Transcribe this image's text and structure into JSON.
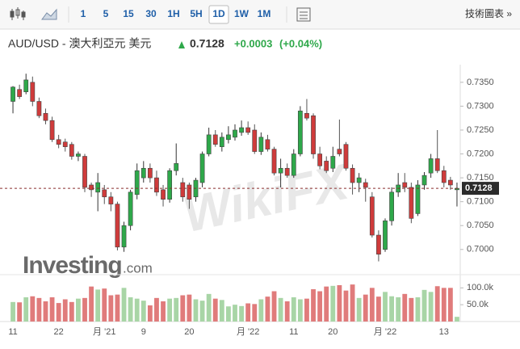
{
  "toolbar": {
    "intervals": [
      "1",
      "5",
      "15",
      "30",
      "1H",
      "5H",
      "1D",
      "1W",
      "1M"
    ],
    "active": 6,
    "technical": "技術圖表 »"
  },
  "header": {
    "pair": "AUD/USD - 澳大利亞元 美元",
    "change": "+0.0003",
    "change_pct": "(+0.04%)"
  },
  "logo": {
    "name": "Investing",
    "suffix": ".com"
  },
  "watermark": "WikiFX",
  "chart_data": {
    "type": "candlestick",
    "categories": [
      "11",
      null,
      null,
      null,
      null,
      null,
      null,
      "22",
      null,
      null,
      null,
      null,
      null,
      null,
      "月 '21",
      null,
      null,
      null,
      null,
      null,
      "9",
      null,
      null,
      null,
      null,
      null,
      null,
      "20",
      null,
      null,
      null,
      null,
      null,
      null,
      null,
      null,
      "月 '22",
      null,
      null,
      null,
      null,
      null,
      null,
      "11",
      null,
      null,
      null,
      null,
      null,
      "20",
      null,
      null,
      null,
      null,
      null,
      null,
      null,
      "月 '22",
      null,
      null,
      null,
      null,
      null,
      null,
      null,
      null,
      "13",
      null,
      null
    ],
    "open": [
      0.731,
      0.7335,
      0.733,
      0.735,
      0.731,
      0.7285,
      0.727,
      0.723,
      0.7225,
      0.722,
      0.7195,
      0.7195,
      0.7135,
      0.712,
      0.7125,
      0.711,
      0.7095,
      0.7005,
      0.705,
      0.7115,
      0.715,
      0.717,
      0.715,
      0.7125,
      0.7105,
      0.7165,
      0.714,
      0.7135,
      0.711,
      0.714,
      0.72,
      0.724,
      0.7215,
      0.723,
      0.7235,
      0.7245,
      0.7255,
      0.725,
      0.7205,
      0.723,
      0.721,
      0.716,
      0.717,
      0.7155,
      0.72,
      0.7285,
      0.728,
      0.72,
      0.7185,
      0.717,
      0.721,
      0.722,
      0.717,
      0.714,
      0.714,
      0.711,
      0.703,
      0.7,
      0.706,
      0.712,
      0.714,
      0.713,
      0.7075,
      0.7135,
      0.716,
      0.719,
      0.7165,
      0.7145,
      0.7125
    ],
    "high": [
      0.7342,
      0.7345,
      0.7368,
      0.7362,
      0.7318,
      0.7295,
      0.7278,
      0.724,
      0.7232,
      0.7225,
      0.7205,
      0.72,
      0.714,
      0.716,
      0.7135,
      0.712,
      0.71,
      0.7058,
      0.7125,
      0.718,
      0.7185,
      0.718,
      0.7165,
      0.7135,
      0.717,
      0.7222,
      0.715,
      0.714,
      0.715,
      0.7205,
      0.7255,
      0.725,
      0.7245,
      0.7258,
      0.7262,
      0.727,
      0.7268,
      0.7262,
      0.7245,
      0.724,
      0.7215,
      0.719,
      0.718,
      0.721,
      0.73,
      0.7315,
      0.7285,
      0.7215,
      0.7195,
      0.7215,
      0.7272,
      0.7225,
      0.7178,
      0.716,
      0.7148,
      0.712,
      0.704,
      0.7065,
      0.713,
      0.716,
      0.716,
      0.714,
      0.7145,
      0.7162,
      0.72,
      0.725,
      0.7175,
      0.7152,
      0.714
    ],
    "low": [
      0.7285,
      0.7315,
      0.7325,
      0.73,
      0.7275,
      0.7262,
      0.7225,
      0.7212,
      0.7205,
      0.7188,
      0.7185,
      0.712,
      0.711,
      0.708,
      0.7095,
      0.708,
      0.6998,
      0.6995,
      0.704,
      0.7105,
      0.714,
      0.714,
      0.7112,
      0.709,
      0.7098,
      0.7155,
      0.71,
      0.7085,
      0.71,
      0.713,
      0.7195,
      0.7215,
      0.7205,
      0.7222,
      0.7228,
      0.7238,
      0.724,
      0.72,
      0.7198,
      0.7205,
      0.7155,
      0.713,
      0.715,
      0.715,
      0.7195,
      0.727,
      0.719,
      0.7168,
      0.716,
      0.7162,
      0.7195,
      0.7165,
      0.7115,
      0.712,
      0.71,
      0.7025,
      0.6975,
      0.6995,
      0.705,
      0.711,
      0.712,
      0.7055,
      0.707,
      0.7125,
      0.715,
      0.716,
      0.713,
      0.7125,
      0.709
    ],
    "close": [
      0.734,
      0.732,
      0.7355,
      0.731,
      0.728,
      0.727,
      0.723,
      0.722,
      0.7215,
      0.7195,
      0.72,
      0.713,
      0.7125,
      0.714,
      0.711,
      0.7095,
      0.7005,
      0.705,
      0.712,
      0.7165,
      0.717,
      0.715,
      0.712,
      0.7105,
      0.7165,
      0.718,
      0.711,
      0.7105,
      0.7145,
      0.72,
      0.724,
      0.722,
      0.7235,
      0.724,
      0.725,
      0.7255,
      0.7245,
      0.7205,
      0.7235,
      0.721,
      0.716,
      0.717,
      0.7155,
      0.72,
      0.729,
      0.7275,
      0.72,
      0.7175,
      0.7165,
      0.7195,
      0.72,
      0.717,
      0.714,
      0.715,
      0.713,
      0.703,
      0.699,
      0.706,
      0.712,
      0.7135,
      0.713,
      0.7065,
      0.7135,
      0.7155,
      0.719,
      0.7165,
      0.714,
      0.7135,
      0.7128
    ],
    "volume": [
      58000,
      57000,
      72000,
      75000,
      70000,
      60000,
      72000,
      55000,
      66000,
      58000,
      68000,
      70000,
      104000,
      95000,
      98000,
      78000,
      80000,
      100000,
      72000,
      68000,
      62000,
      48000,
      70000,
      60000,
      68000,
      70000,
      78000,
      80000,
      66000,
      62000,
      82000,
      68000,
      64000,
      45000,
      50000,
      46000,
      54000,
      52000,
      66000,
      74000,
      90000,
      70000,
      60000,
      72000,
      66000,
      68000,
      96000,
      90000,
      104000,
      106000,
      108000,
      92000,
      110000,
      70000,
      80000,
      100000,
      74000,
      88000,
      75000,
      72000,
      82000,
      70000,
      72000,
      94000,
      88000,
      105000,
      100000,
      100000,
      14000
    ],
    "last_price": 0.7128,
    "ylim": [
      0.6959,
      0.7387
    ],
    "yticks": [
      {
        "value": 0.7,
        "label": "0.7000"
      },
      {
        "value": 0.705,
        "label": "0.7050"
      },
      {
        "value": 0.71,
        "label": "0.7100"
      },
      {
        "value": 0.715,
        "label": "0.7150"
      },
      {
        "value": 0.72,
        "label": "0.7200"
      },
      {
        "value": 0.725,
        "label": "0.7250"
      },
      {
        "value": 0.73,
        "label": "0.7300"
      },
      {
        "value": 0.735,
        "label": "0.7350"
      }
    ],
    "vlim": [
      0,
      120000
    ],
    "vticks": [
      {
        "value": 50000,
        "label": "50.0k"
      },
      {
        "value": 100000,
        "label": "100.0k"
      }
    ],
    "up_color": "#2ea84a",
    "down_color": "#cf3b3b",
    "up_volume_color": "#a8d5a6",
    "down_volume_color": "#e07b7b"
  }
}
